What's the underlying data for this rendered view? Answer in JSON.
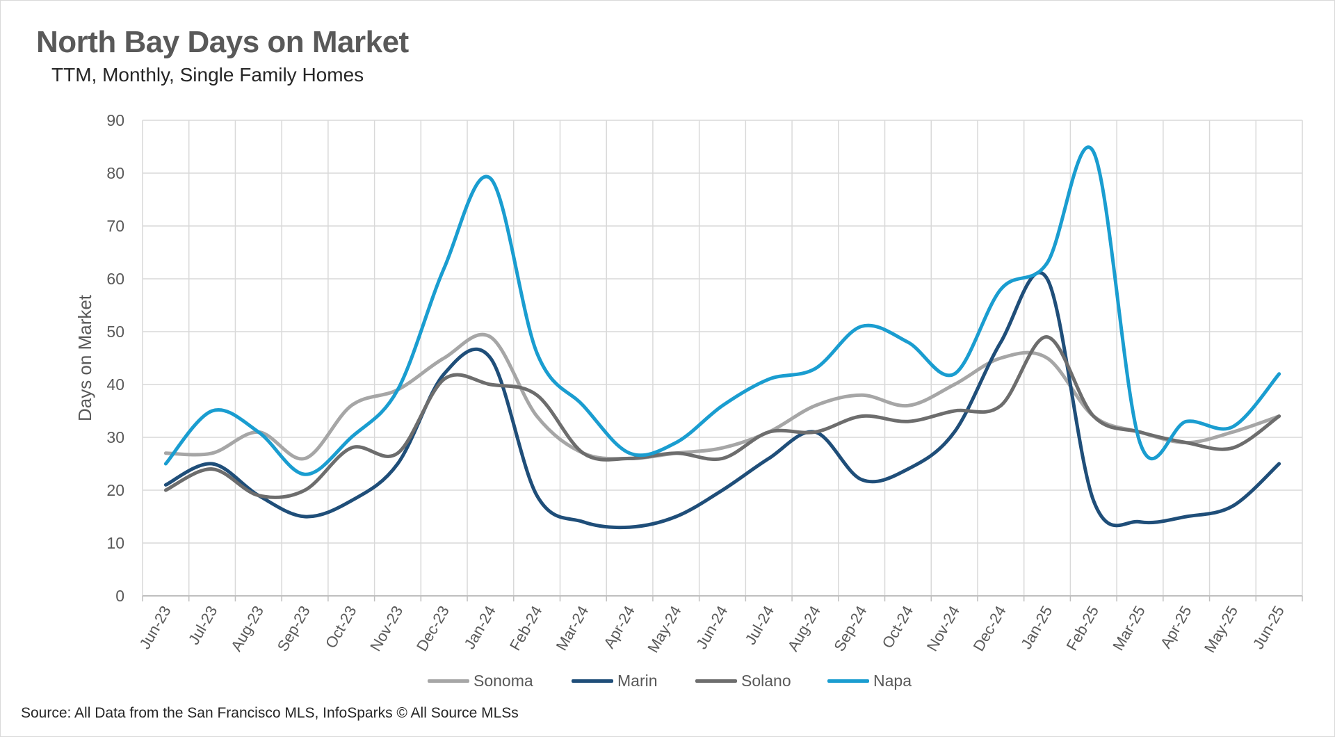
{
  "title": "North Bay Days on Market",
  "subtitle": "TTM, Monthly, Single Family Homes",
  "source": "Source: All Data from the San Francisco MLS, InfoSparks © All Source MLSs",
  "chart_data": {
    "type": "line",
    "title": "North Bay Days on Market",
    "subtitle": "TTM, Monthly, Single Family Homes",
    "xlabel": "",
    "ylabel": "Days on Market",
    "ylim": [
      0,
      90
    ],
    "yticks": [
      0,
      10,
      20,
      30,
      40,
      50,
      60,
      70,
      80,
      90
    ],
    "grid": true,
    "legend": "bottom",
    "categories": [
      "Jun-23",
      "Jul-23",
      "Aug-23",
      "Sep-23",
      "Oct-23",
      "Nov-23",
      "Dec-23",
      "Jan-24",
      "Feb-24",
      "Mar-24",
      "Apr-24",
      "May-24",
      "Jun-24",
      "Jul-24",
      "Aug-24",
      "Sep-24",
      "Oct-24",
      "Nov-24",
      "Dec-24",
      "Jan-25",
      "Feb-25",
      "Mar-25",
      "Apr-25",
      "May-25",
      "Jun-25"
    ],
    "series": [
      {
        "name": "Sonoma",
        "color": "#a6a6a6",
        "values": [
          27,
          27,
          31,
          26,
          36,
          39,
          45,
          49,
          34,
          27,
          26,
          27,
          28,
          31,
          36,
          38,
          36,
          40,
          45,
          45,
          34,
          31,
          29,
          31,
          34
        ]
      },
      {
        "name": "Marin",
        "color": "#1f4e79",
        "values": [
          21,
          25,
          19,
          15,
          18,
          25,
          42,
          45,
          19,
          14,
          13,
          15,
          20,
          26,
          31,
          22,
          24,
          31,
          48,
          60,
          18,
          14,
          15,
          17,
          25
        ]
      },
      {
        "name": "Solano",
        "color": "#6d6d6d",
        "values": [
          20,
          24,
          19,
          20,
          28,
          27,
          41,
          40,
          38,
          27,
          26,
          27,
          26,
          31,
          31,
          34,
          33,
          35,
          36,
          49,
          34,
          31,
          29,
          28,
          34
        ]
      },
      {
        "name": "Napa",
        "color": "#1a9dd0",
        "values": [
          25,
          35,
          31,
          23,
          30,
          39,
          62,
          79,
          46,
          36,
          27,
          29,
          36,
          41,
          43,
          51,
          48,
          42,
          58,
          63,
          84,
          29,
          33,
          32,
          42
        ]
      }
    ]
  }
}
